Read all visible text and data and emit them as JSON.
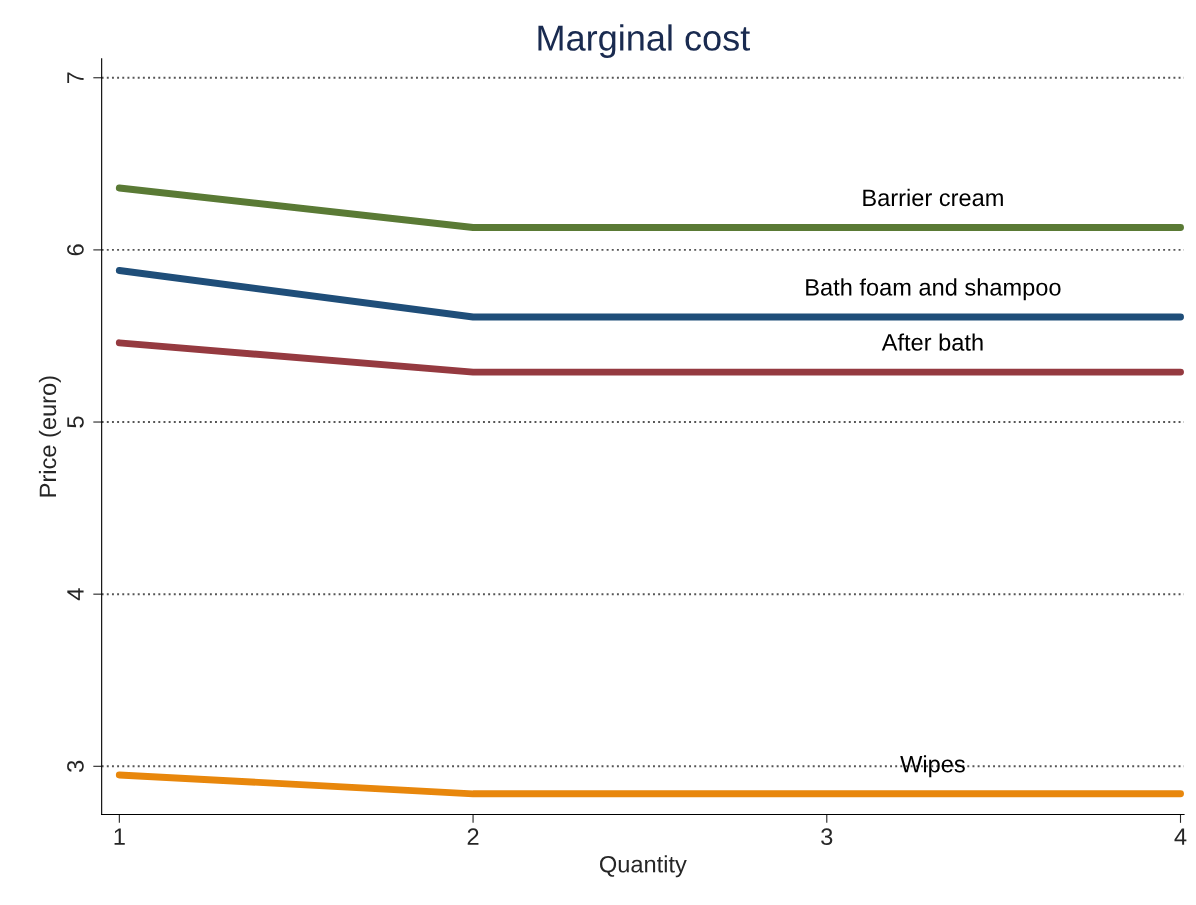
{
  "chart_data": {
    "type": "line",
    "title": "Marginal cost",
    "xlabel": "Quantity",
    "ylabel": "Price (euro)",
    "x": [
      1,
      2,
      3,
      4
    ],
    "series": [
      {
        "name": "Barrier cream",
        "color": "#5a7a35",
        "values": [
          6.36,
          6.13,
          6.13,
          6.13
        ]
      },
      {
        "name": "Bath foam and shampoo",
        "color": "#1f4e79",
        "values": [
          5.88,
          5.61,
          5.61,
          5.61
        ]
      },
      {
        "name": "After bath",
        "color": "#953a40",
        "values": [
          5.46,
          5.29,
          5.29,
          5.29
        ]
      },
      {
        "name": "Wipes",
        "color": "#e8870c",
        "values": [
          2.95,
          2.84,
          2.84,
          2.84
        ]
      }
    ],
    "xlim": [
      0.95,
      4.01
    ],
    "xticks": [
      1,
      2,
      3,
      4
    ],
    "ylim": [
      2.72,
      7.11
    ],
    "yticks": [
      3,
      4,
      5,
      6,
      7
    ],
    "grid": "y",
    "legend": false,
    "marker": "none",
    "line_style": "solid"
  }
}
